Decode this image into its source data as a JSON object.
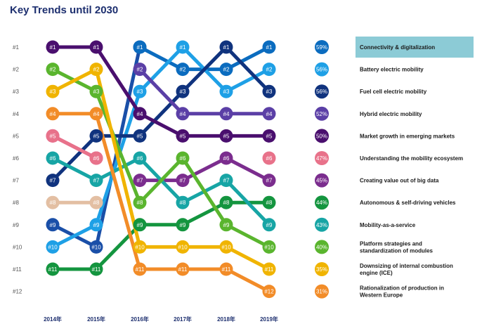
{
  "page": {
    "title": "Key Trends until 2030"
  },
  "chart_data": {
    "type": "line",
    "title": "Key Trends until 2030",
    "x": [
      "2014年",
      "2015年",
      "2016年",
      "2017年",
      "2018年",
      "2019年"
    ],
    "rank_labels": [
      "#1",
      "#2",
      "#3",
      "#4",
      "#5",
      "#6",
      "#7",
      "#8",
      "#9",
      "#10",
      "#11",
      "#12"
    ],
    "series": [
      {
        "name": "Connectivity & digitalization",
        "color": "#0b6cbf",
        "share": "59%",
        "highlight": true,
        "ranks": [
          null,
          null,
          1,
          2,
          2,
          1
        ]
      },
      {
        "name": "Battery electric mobility",
        "color": "#1ea0e6",
        "share": "56%",
        "ranks": [
          10,
          9,
          3,
          1,
          3,
          2
        ]
      },
      {
        "name": "Fuel cell electric mobility",
        "color": "#10337e",
        "share": "56%",
        "ranks": [
          7,
          5,
          5,
          3,
          1,
          3
        ]
      },
      {
        "name": "Hybrid electric mobility",
        "color": "#5b3fa6",
        "share": "52%",
        "ranks": [
          null,
          null,
          2,
          4,
          4,
          4
        ]
      },
      {
        "name": "Market growth in emerging markets",
        "color": "#4a0f6e",
        "share": "50%",
        "ranks": [
          1,
          1,
          4,
          5,
          5,
          5
        ]
      },
      {
        "name": "Understanding the mobility ecosystem",
        "color": "#e8728a",
        "share": "47%",
        "ranks": [
          5,
          6,
          null,
          null,
          null,
          6
        ]
      },
      {
        "name": "Creating value out of big data",
        "color": "#7b2d8e",
        "share": "45%",
        "ranks": [
          null,
          null,
          7,
          7,
          6,
          7
        ]
      },
      {
        "name": "Autonomous & self-driving vehicles",
        "color": "#14953f",
        "share": "44%",
        "ranks": [
          11,
          11,
          9,
          9,
          8,
          8
        ]
      },
      {
        "name": "Mobility-as-a-service",
        "color": "#17a5a5",
        "share": "43%",
        "ranks": [
          6,
          7,
          6,
          8,
          7,
          9
        ]
      },
      {
        "name": "Platform strategies and standardization of modules",
        "color": "#5ab52e",
        "share": "40%",
        "ranks": [
          2,
          3,
          8,
          6,
          9,
          10
        ]
      },
      {
        "name": "Downsizing of internal combustion engine (ICE)",
        "color": "#f0b400",
        "share": "35%",
        "ranks": [
          3,
          2,
          10,
          10,
          10,
          11
        ]
      },
      {
        "name": "Rationalization of production in Western Europe",
        "color": "#f28c28",
        "share": "31%",
        "ranks": [
          4,
          4,
          11,
          11,
          11,
          12
        ]
      }
    ],
    "extra_segments": [
      {
        "color": "#1a4fa8",
        "ranks": [
          9,
          10,
          1,
          null,
          null,
          null
        ]
      },
      {
        "color": "#e3bfa3",
        "ranks": [
          8,
          8,
          null,
          null,
          null,
          null
        ]
      },
      {
        "color": "#e0197d",
        "ranks": [
          5,
          6,
          null,
          null,
          null,
          null
        ]
      }
    ]
  }
}
